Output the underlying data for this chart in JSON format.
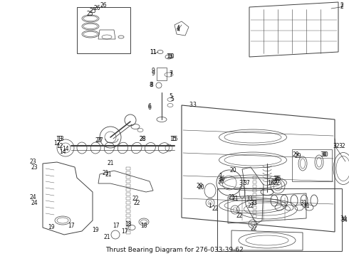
{
  "title": "Thrust Bearing Diagram for 276-033-39-62",
  "bg": "#f0f0f0",
  "fg": "#303030",
  "fig_width": 4.9,
  "fig_height": 3.6,
  "dpi": 100
}
